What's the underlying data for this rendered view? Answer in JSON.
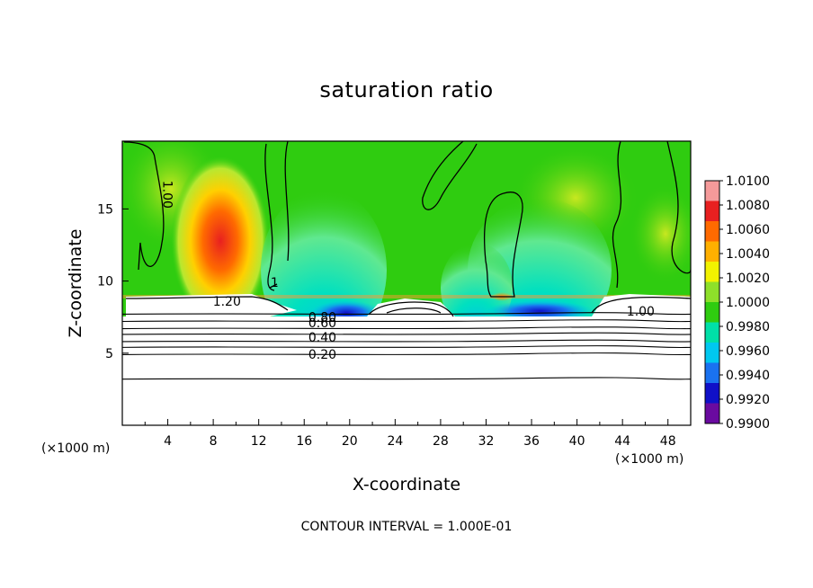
{
  "chart_data": {
    "type": "heatmap",
    "title": "saturation ratio",
    "xlabel": "X-coordinate",
    "ylabel": "Z-coordinate",
    "x_unit": "(×1000 m)",
    "x_ticks": [
      "4",
      "8",
      "12",
      "16",
      "20",
      "24",
      "28",
      "32",
      "36",
      "40",
      "44",
      "48"
    ],
    "y_ticks": [
      "5",
      "10",
      "15"
    ],
    "xlim": [
      0,
      50
    ],
    "ylim": [
      0,
      19.7
    ],
    "contour_interval": "CONTOUR INTERVAL = 1.000E-01",
    "colorbar": {
      "labels": [
        "1.0100",
        "1.0080",
        "1.0060",
        "1.0040",
        "1.0020",
        "1.0000",
        "0.9980",
        "0.9960",
        "0.9940",
        "0.9920",
        "0.9900"
      ],
      "colors": [
        "#f59a9a",
        "#e82020",
        "#ff6a00",
        "#ffb000",
        "#f2f200",
        "#8ee02a",
        "#2fcc10",
        "#00e0a8",
        "#00c8f0",
        "#1a72f0",
        "#1010c8",
        "#6a0aa0"
      ]
    },
    "contour_labels": [
      {
        "text": "1.00",
        "x": 3.6,
        "z": 16.0,
        "rotate": 90
      },
      {
        "text": "1.20",
        "x": 9.2,
        "z": 8.3
      },
      {
        "text": "1",
        "x": 13.4,
        "z": 9.6
      },
      {
        "text": "1.00",
        "x": 45.6,
        "z": 7.6
      },
      {
        "text": "0.80",
        "x": 17.6,
        "z": 7.2
      },
      {
        "text": "0.60",
        "x": 17.6,
        "z": 6.8
      },
      {
        "text": "0.40",
        "x": 17.6,
        "z": 5.8
      },
      {
        "text": "0.20",
        "x": 17.6,
        "z": 4.6
      }
    ],
    "contour_levels_below": [
      7.7,
      7.2,
      6.7,
      6.3,
      5.8,
      5.4,
      4.9,
      3.2
    ]
  }
}
